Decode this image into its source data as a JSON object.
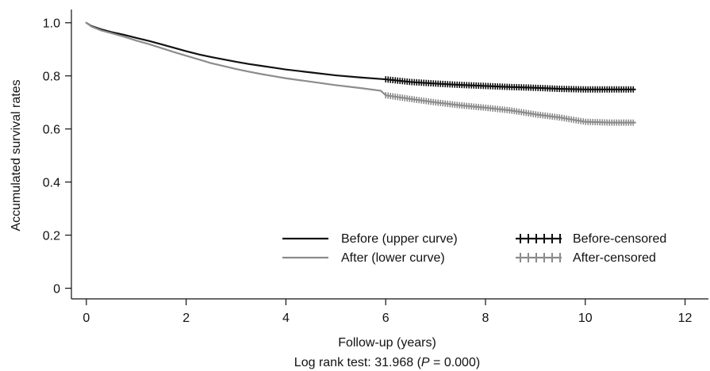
{
  "chart_data": {
    "type": "line",
    "title": "",
    "xlabel": "Follow-up (years)",
    "ylabel": "Accumulated survival rates",
    "caption": {
      "prefix": "Log rank test: 31.968 (",
      "p_symbol": "P",
      "suffix": " = 0.000)"
    },
    "xlim": [
      -0.3,
      12.5
    ],
    "ylim": [
      -0.04,
      1.05
    ],
    "x_ticks": [
      0,
      2,
      4,
      6,
      8,
      10,
      12
    ],
    "x_tick_labels": [
      "0",
      "2",
      "4",
      "6",
      "8",
      "10",
      "12"
    ],
    "y_ticks": [
      0,
      0.2,
      0.4,
      0.6,
      0.8,
      1.0
    ],
    "y_tick_labels": [
      "0",
      "0.2",
      "0.4",
      "0.6",
      "0.8",
      "1.0"
    ],
    "grid": false,
    "legend_position": "bottom-right",
    "censor_range": [
      6,
      11
    ],
    "series": [
      {
        "name": "Before (upper curve)",
        "color": "#111111",
        "points": [
          [
            0,
            1.0
          ],
          [
            0.1,
            0.988
          ],
          [
            0.3,
            0.975
          ],
          [
            0.5,
            0.965
          ],
          [
            0.75,
            0.955
          ],
          [
            1.0,
            0.943
          ],
          [
            1.25,
            0.932
          ],
          [
            1.5,
            0.919
          ],
          [
            1.75,
            0.906
          ],
          [
            2.0,
            0.893
          ],
          [
            2.25,
            0.881
          ],
          [
            2.5,
            0.871
          ],
          [
            2.75,
            0.862
          ],
          [
            3.0,
            0.853
          ],
          [
            3.25,
            0.845
          ],
          [
            3.5,
            0.838
          ],
          [
            3.75,
            0.831
          ],
          [
            4.0,
            0.824
          ],
          [
            4.5,
            0.813
          ],
          [
            5.0,
            0.802
          ],
          [
            5.5,
            0.794
          ],
          [
            6.0,
            0.787
          ],
          [
            6.5,
            0.777
          ],
          [
            7.0,
            0.771
          ],
          [
            7.5,
            0.766
          ],
          [
            8.0,
            0.762
          ],
          [
            8.5,
            0.758
          ],
          [
            9.0,
            0.755
          ],
          [
            9.5,
            0.751
          ],
          [
            10.0,
            0.749
          ],
          [
            10.5,
            0.749
          ],
          [
            11.0,
            0.749
          ]
        ]
      },
      {
        "name": "After (lower curve)",
        "color": "#8c8c8c",
        "points": [
          [
            0,
            1.0
          ],
          [
            0.1,
            0.986
          ],
          [
            0.3,
            0.971
          ],
          [
            0.5,
            0.961
          ],
          [
            0.75,
            0.948
          ],
          [
            1.0,
            0.933
          ],
          [
            1.25,
            0.92
          ],
          [
            1.5,
            0.905
          ],
          [
            1.75,
            0.89
          ],
          [
            2.0,
            0.876
          ],
          [
            2.25,
            0.862
          ],
          [
            2.5,
            0.848
          ],
          [
            2.75,
            0.837
          ],
          [
            3.0,
            0.826
          ],
          [
            3.25,
            0.816
          ],
          [
            3.5,
            0.807
          ],
          [
            3.75,
            0.799
          ],
          [
            4.0,
            0.791
          ],
          [
            4.5,
            0.778
          ],
          [
            5.0,
            0.765
          ],
          [
            5.5,
            0.754
          ],
          [
            5.9,
            0.744
          ],
          [
            6.0,
            0.727
          ],
          [
            6.5,
            0.713
          ],
          [
            7.0,
            0.7
          ],
          [
            7.5,
            0.689
          ],
          [
            8.0,
            0.68
          ],
          [
            8.5,
            0.67
          ],
          [
            9.0,
            0.655
          ],
          [
            9.5,
            0.643
          ],
          [
            10.0,
            0.627
          ],
          [
            10.5,
            0.624
          ],
          [
            11.0,
            0.624
          ]
        ]
      }
    ],
    "legend": [
      {
        "label": "Before (upper curve)",
        "style": "line",
        "color": "#111111"
      },
      {
        "label": "After (lower curve)",
        "style": "line",
        "color": "#8c8c8c"
      },
      {
        "label": "Before-censored",
        "style": "censored",
        "color": "#111111"
      },
      {
        "label": "After-censored",
        "style": "censored",
        "color": "#8c8c8c"
      }
    ]
  }
}
